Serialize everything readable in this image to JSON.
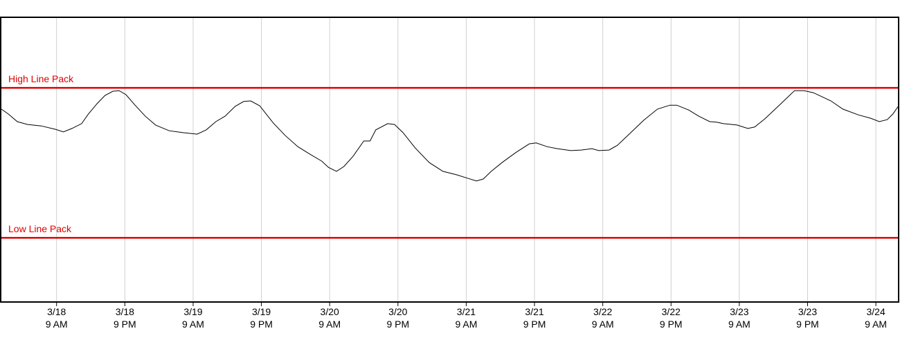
{
  "chart_data": {
    "type": "line",
    "xlim": [
      -9.7,
      148
    ],
    "ylim": [
      0,
      100
    ],
    "grid": true,
    "xticks": [
      {
        "value": 0,
        "label": [
          "3/18",
          "9 AM"
        ]
      },
      {
        "value": 12,
        "label": [
          "3/18",
          "9 PM"
        ]
      },
      {
        "value": 24,
        "label": [
          "3/19",
          "9 AM"
        ]
      },
      {
        "value": 36,
        "label": [
          "3/19",
          "9 PM"
        ]
      },
      {
        "value": 48,
        "label": [
          "3/20",
          "9 AM"
        ]
      },
      {
        "value": 60,
        "label": [
          "3/20",
          "9 PM"
        ]
      },
      {
        "value": 72,
        "label": [
          "3/21",
          "9 AM"
        ]
      },
      {
        "value": 84,
        "label": [
          "3/21",
          "9 PM"
        ]
      },
      {
        "value": 96,
        "label": [
          "3/22",
          "9 AM"
        ]
      },
      {
        "value": 108,
        "label": [
          "3/22",
          "9 PM"
        ]
      },
      {
        "value": 120,
        "label": [
          "3/23",
          "9 AM"
        ]
      },
      {
        "value": 132,
        "label": [
          "3/23",
          "9 PM"
        ]
      },
      {
        "value": 144,
        "label": [
          "3/24",
          "9 AM"
        ]
      }
    ],
    "limit_lines": [
      {
        "label": "High Line Pack",
        "value": 75.4,
        "color": "#e00000"
      },
      {
        "label": "Low Line Pack",
        "value": 22.6,
        "color": "#e00000"
      }
    ],
    "series": [
      {
        "color": "#000000",
        "x": [
          -9.7,
          -8.5,
          -6.9,
          -5.1,
          -2.7,
          -0.2,
          1.2,
          2.7,
          4.4,
          5.6,
          7.1,
          8.5,
          9.9,
          11.0,
          12.2,
          13.8,
          15.6,
          17.4,
          19.8,
          22.3,
          24.7,
          26.3,
          28.0,
          29.6,
          31.4,
          32.9,
          34.1,
          35.7,
          38.1,
          40.2,
          42.4,
          44.5,
          46.6,
          47.8,
          49.2,
          50.5,
          52.1,
          54.0,
          55.1,
          56.1,
          58.2,
          59.4,
          60.9,
          63.0,
          65.5,
          67.9,
          70.3,
          72.2,
          73.8,
          75.0,
          76.4,
          78.3,
          80.7,
          83.1,
          84.3,
          86.2,
          88.0,
          90.4,
          92.2,
          94.1,
          95.3,
          97.1,
          98.6,
          100.8,
          103.2,
          105.6,
          107.8,
          109.0,
          111.1,
          112.9,
          114.8,
          116.0,
          117.2,
          119.6,
          121.5,
          122.7,
          124.5,
          127.3,
          129.7,
          131.4,
          133.0,
          136.1,
          138.2,
          140.9,
          143.1,
          144.6,
          146.0,
          147.0,
          148.0
        ],
        "values": [
          67.9,
          66.2,
          63.5,
          62.5,
          62.0,
          60.8,
          59.9,
          61.1,
          62.8,
          66.2,
          69.8,
          72.7,
          74.2,
          74.4,
          73.0,
          69.3,
          65.4,
          62.3,
          60.3,
          59.6,
          59.1,
          60.6,
          63.5,
          65.4,
          68.9,
          70.6,
          70.8,
          69.1,
          63.0,
          58.6,
          54.7,
          52.1,
          49.6,
          47.4,
          46.0,
          47.7,
          51.3,
          56.7,
          56.7,
          60.6,
          62.8,
          62.5,
          59.6,
          54.3,
          49.1,
          46.0,
          44.8,
          43.6,
          42.6,
          43.3,
          46.0,
          49.1,
          52.6,
          55.7,
          56.0,
          54.7,
          54.0,
          53.3,
          53.5,
          54.0,
          53.3,
          53.5,
          55.2,
          59.4,
          64.0,
          67.9,
          69.3,
          69.3,
          67.6,
          65.4,
          63.5,
          63.3,
          62.8,
          62.3,
          61.1,
          61.6,
          64.5,
          69.8,
          74.4,
          74.4,
          73.7,
          70.8,
          67.9,
          65.9,
          64.7,
          63.5,
          64.2,
          66.2,
          69.1
        ]
      }
    ]
  }
}
